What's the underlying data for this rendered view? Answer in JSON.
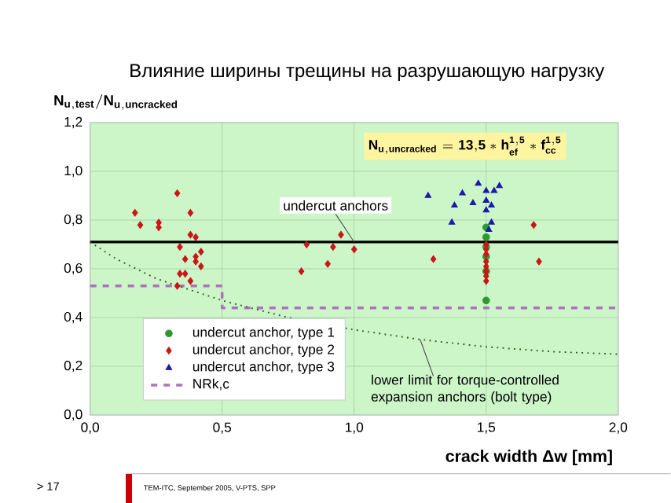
{
  "chart_data": {
    "type": "scatter",
    "title": "Влияние ширины трещины на разрушающую нагрузку",
    "ylabel": "\\mathbf{N_{u,test}/N_{u,uncracked}}",
    "xlabel": "crack width Δw [mm]",
    "xlim": [
      0,
      2
    ],
    "ylim": [
      0,
      1.2
    ],
    "xticks": [
      {
        "value": 0,
        "label": "0,0"
      },
      {
        "value": 0.5,
        "label": "0,5"
      },
      {
        "value": 1,
        "label": "1,0"
      },
      {
        "value": 1.5,
        "label": "1,5"
      },
      {
        "value": 2,
        "label": "2,0"
      }
    ],
    "yticks": [
      {
        "value": 0,
        "label": "0,0"
      },
      {
        "value": 0.2,
        "label": "0,2"
      },
      {
        "value": 0.4,
        "label": "0,4"
      },
      {
        "value": 0.6,
        "label": "0,6"
      },
      {
        "value": 0.8,
        "label": "0,8"
      },
      {
        "value": 1,
        "label": "1,0"
      },
      {
        "value": 1.2,
        "label": "1,2"
      }
    ],
    "grid": true,
    "legend": "bottom left",
    "series": [
      {
        "name": "undercut anchor, type 1",
        "color": "#2e9a2e",
        "marker": "circle",
        "x": [
          1.5,
          1.5,
          1.5,
          1.5,
          1.5,
          1.5
        ],
        "values": [
          0.77,
          0.73,
          0.69,
          0.65,
          0.59,
          0.47
        ]
      },
      {
        "name": "undercut anchor, type 2",
        "color": "#cc1515",
        "marker": "diamond",
        "x": [
          0.17,
          0.19,
          0.26,
          0.26,
          0.33,
          0.34,
          0.38,
          0.38,
          0.4,
          0.42,
          0.4,
          0.4,
          0.42,
          0.36,
          0.34,
          0.36,
          0.38,
          0.33,
          0.8,
          0.82,
          0.9,
          0.92,
          0.95,
          1.0,
          1.3,
          1.68,
          1.7,
          1.5,
          1.5,
          1.5,
          1.5,
          1.5,
          1.5,
          1.5,
          1.5
        ],
        "values": [
          0.83,
          0.78,
          0.79,
          0.77,
          0.91,
          0.69,
          0.83,
          0.74,
          0.73,
          0.67,
          0.65,
          0.63,
          0.61,
          0.64,
          0.58,
          0.58,
          0.55,
          0.53,
          0.59,
          0.7,
          0.62,
          0.69,
          0.74,
          0.68,
          0.64,
          0.78,
          0.63,
          0.7,
          0.68,
          0.66,
          0.63,
          0.61,
          0.59,
          0.57,
          0.55
        ]
      },
      {
        "name": "undercut anchor, type 3",
        "color": "#1a1aaa",
        "marker": "triangle",
        "x": [
          1.28,
          1.37,
          1.38,
          1.41,
          1.45,
          1.47,
          1.5,
          1.5,
          1.5,
          1.52,
          1.53,
          1.55,
          1.52,
          1.51
        ],
        "values": [
          0.9,
          0.79,
          0.86,
          0.91,
          0.87,
          0.95,
          0.92,
          0.88,
          0.84,
          0.86,
          0.92,
          0.94,
          0.79,
          0.76
        ]
      },
      {
        "name": "NRk,c",
        "type": "line",
        "line_style": "dashed",
        "color": "#b070c0",
        "x": [
          0,
          0.5,
          0.5,
          2
        ],
        "values": [
          0.53,
          0.53,
          0.44,
          0.44
        ]
      },
      {
        "type": "line",
        "line_style": "dotted",
        "color": "#1f5f1f",
        "x": [
          0,
          0.1,
          0.25,
          0.5,
          0.75,
          1.0,
          1.25,
          1.5,
          1.75,
          2.0
        ],
        "values": [
          0.71,
          0.64,
          0.56,
          0.47,
          0.4,
          0.35,
          0.31,
          0.28,
          0.26,
          0.25
        ]
      }
    ],
    "ref_lines": [
      {
        "axis": "y",
        "value": 0.71,
        "color": "#000000"
      }
    ],
    "annotations": [
      "\\mathbf{N_{u,uncracked} = 13{,}5 * h_{ef}^{1{,}5} * f_{cc}^{1{,}5}}",
      {
        "text": "undercut anchors",
        "x": 1.0,
        "y": 0.71
      },
      {
        "text": "lower limit for torque-controlled expansion anchors (bolt type)",
        "x": 1.25,
        "y": 0.31
      },
      "TEM-ITC, September 2005, V-PTS, SPP",
      "> 17"
    ]
  }
}
